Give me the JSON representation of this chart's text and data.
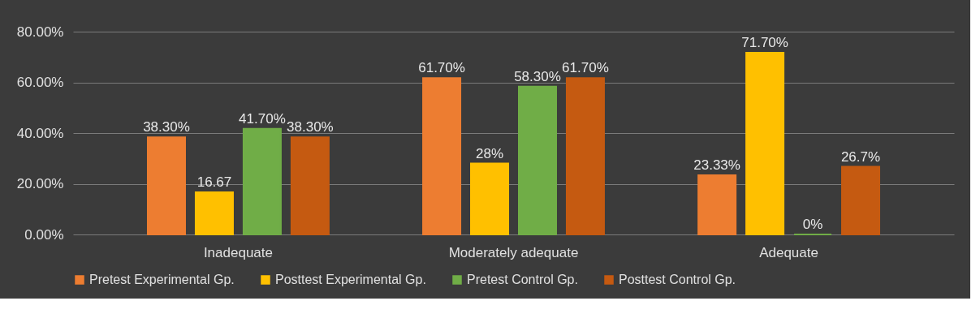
{
  "chart_data": {
    "type": "bar",
    "categories": [
      "Inadequate",
      "Moderately adequate",
      "Adequate"
    ],
    "series": [
      {
        "name": "Pretest Experimental Gp.",
        "color": "#ed7d31",
        "values": [
          38.3,
          61.7,
          23.33
        ],
        "value_labels": [
          "38.30%",
          "61.70%",
          "23.33%"
        ]
      },
      {
        "name": "Posttest Experimental Gp.",
        "color": "#ffc000",
        "values": [
          16.67,
          28,
          71.7
        ],
        "value_labels": [
          "16.67",
          "28%",
          "71.70%"
        ]
      },
      {
        "name": "Pretest Control Gp.",
        "color": "#70ad47",
        "values": [
          41.7,
          58.3,
          0
        ],
        "value_labels": [
          "41.70%",
          "58.30%",
          "0%"
        ]
      },
      {
        "name": "Posttest Control Gp.",
        "color": "#c55a11",
        "values": [
          38.3,
          61.7,
          26.7
        ],
        "value_labels": [
          "38.30%",
          "61.70%",
          "26.7%"
        ]
      }
    ],
    "ylim": [
      0,
      80
    ],
    "yticks": [
      {
        "value": 0,
        "label": "0.00%"
      },
      {
        "value": 20,
        "label": "20.00%"
      },
      {
        "value": 40,
        "label": "40.00%"
      },
      {
        "value": 60,
        "label": "60.00%"
      },
      {
        "value": 80,
        "label": "80.00%"
      }
    ],
    "grid": "y",
    "legend": "bottom"
  }
}
